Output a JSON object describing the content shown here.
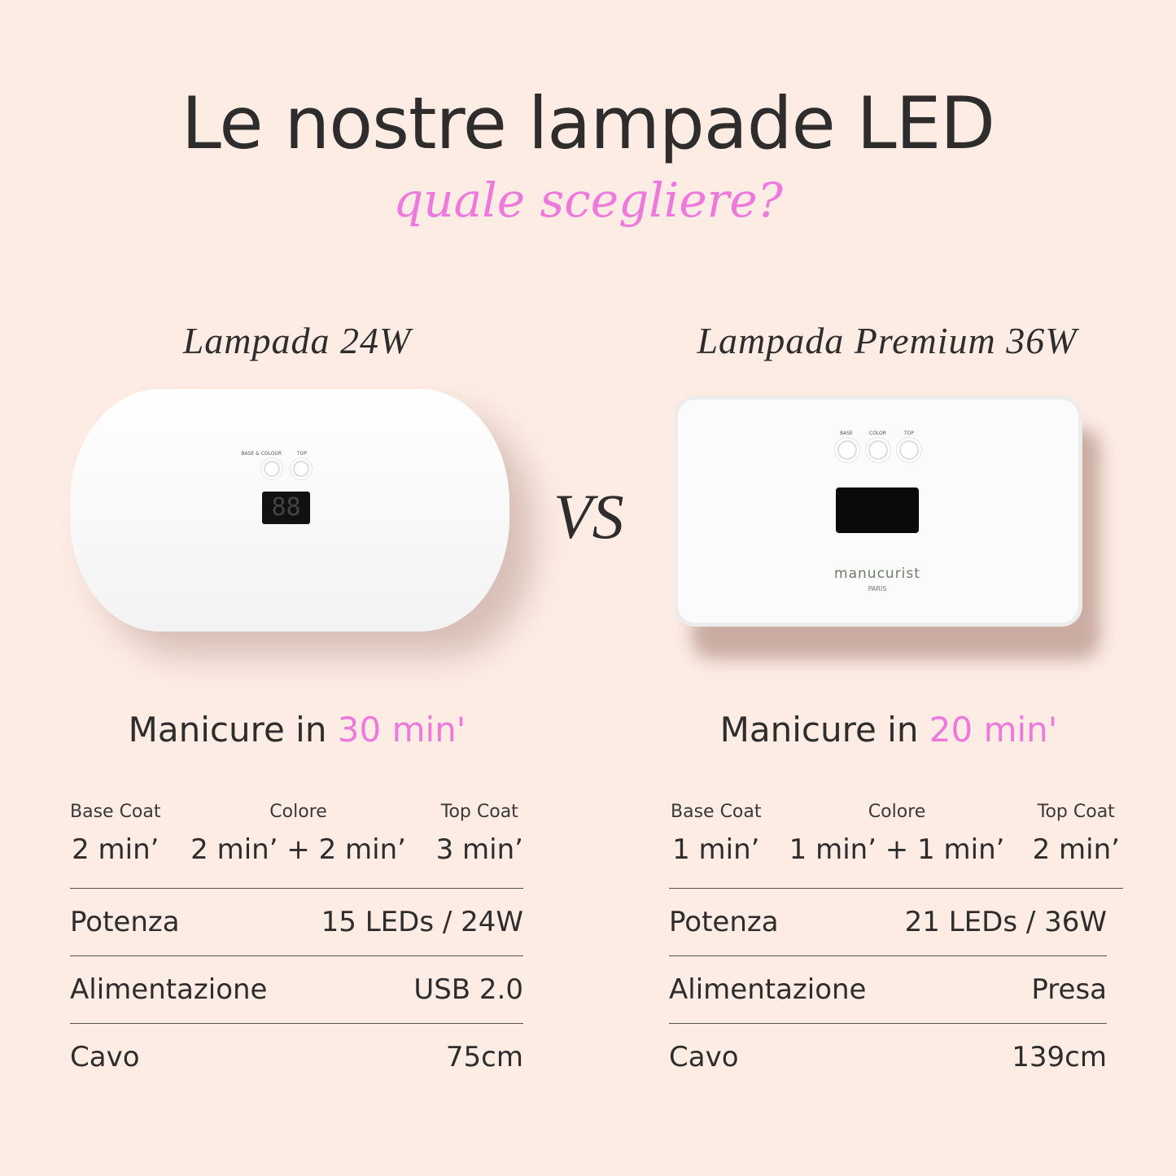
{
  "header": {
    "title": "Le nostre lampade LED",
    "subtitle": "quale scegliere?"
  },
  "vs_label": "VS",
  "accent_color": "#ef78dc",
  "products": [
    {
      "name": "Lampada 24W",
      "manicure_prefix": "Manicure in",
      "manicure_time": "30 min'",
      "device": {
        "buttons": [
          "BASE & COLOUR",
          "TOP"
        ],
        "display": "88"
      },
      "steps": [
        {
          "label": "Base Coat",
          "value": "2 min’"
        },
        {
          "label": "Colore",
          "value": "2 min’ + 2 min’"
        },
        {
          "label": "Top Coat",
          "value": "3 min’"
        }
      ],
      "specs": [
        {
          "label": "Potenza",
          "value": "15 LEDs / 24W"
        },
        {
          "label": "Alimentazione",
          "value": "USB 2.0"
        },
        {
          "label": "Cavo",
          "value": "75cm"
        }
      ]
    },
    {
      "name": "Lampada Premium 36W",
      "manicure_prefix": "Manicure in",
      "manicure_time": "20 min'",
      "device": {
        "buttons": [
          "BASE",
          "COLOR",
          "TOP"
        ],
        "brand": "manucurist",
        "brand_sub": "PARIS"
      },
      "steps": [
        {
          "label": "Base Coat",
          "value": "1 min’"
        },
        {
          "label": "Colore",
          "value": "1 min’ + 1 min’"
        },
        {
          "label": "Top Coat",
          "value": "2 min’"
        }
      ],
      "specs": [
        {
          "label": "Potenza",
          "value": "21 LEDs / 36W"
        },
        {
          "label": "Alimentazione",
          "value": "Presa"
        },
        {
          "label": "Cavo",
          "value": "139cm"
        }
      ]
    }
  ]
}
